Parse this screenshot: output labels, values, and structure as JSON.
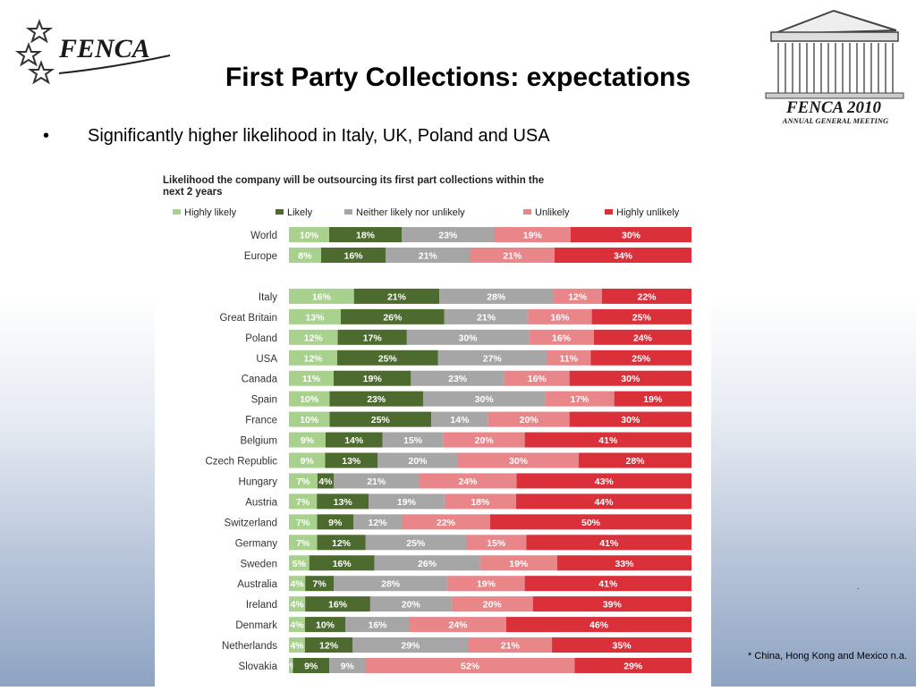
{
  "slide": {
    "title": "First Party Collections: expectations",
    "bullet_symbol": "•",
    "bullet": "Significantly higher likelihood in Italy, UK, Poland and USA",
    "footnote": "* China, Hong Kong and Mexico n.a.",
    "decor_dot": "."
  },
  "logos": {
    "left": {
      "text": "FENCA",
      "icon": "stars-swoosh-logo"
    },
    "right": {
      "title": "FENCA 2010",
      "subtitle": "ANNUAL GENERAL MEETING",
      "icon": "parthenon-logo"
    }
  },
  "chart_data": {
    "type": "bar",
    "orientation": "horizontal",
    "stacked": "100%",
    "title": "Likelihood the company will be outsourcing its first part collections within the next 2 years",
    "title_lines": [
      "Likelihood the company will be outsourcing its first part collections within the",
      "next 2 years"
    ],
    "legend_position": "top",
    "categories": [
      "World",
      "Europe",
      "Italy",
      "Great Britain",
      "Poland",
      "USA",
      "Canada",
      "Spain",
      "France",
      "Belgium",
      "Czech Republic",
      "Hungary",
      "Austria",
      "Switzerland",
      "Germany",
      "Sweden",
      "Australia",
      "Ireland",
      "Denmark",
      "Netherlands",
      "Slovakia"
    ],
    "gap_after": [
      "Europe"
    ],
    "series": [
      {
        "name": "Highly likely",
        "color": "#a9d18e",
        "values": [
          10,
          8,
          16,
          13,
          12,
          12,
          11,
          10,
          10,
          9,
          9,
          7,
          7,
          7,
          7,
          5,
          4,
          4,
          4,
          4,
          1
        ]
      },
      {
        "name": "Likely",
        "color": "#4e6b2f",
        "values": [
          18,
          16,
          21,
          26,
          17,
          25,
          19,
          23,
          25,
          14,
          13,
          4,
          13,
          9,
          12,
          16,
          7,
          16,
          10,
          12,
          9
        ]
      },
      {
        "name": "Neither likely nor unlikely",
        "color": "#a6a6a6",
        "values": [
          23,
          21,
          28,
          21,
          30,
          27,
          23,
          30,
          14,
          15,
          20,
          21,
          19,
          12,
          25,
          26,
          28,
          20,
          16,
          29,
          9
        ]
      },
      {
        "name": "Unlikely",
        "color": "#e8868a",
        "values": [
          19,
          21,
          12,
          16,
          16,
          11,
          16,
          17,
          20,
          20,
          30,
          24,
          18,
          22,
          15,
          19,
          19,
          20,
          24,
          21,
          52
        ]
      },
      {
        "name": "Highly unlikely",
        "color": "#d9303a",
        "values": [
          30,
          34,
          22,
          25,
          24,
          25,
          30,
          19,
          30,
          41,
          28,
          43,
          44,
          50,
          41,
          33,
          41,
          39,
          46,
          35,
          29
        ]
      }
    ],
    "xlim": [
      0,
      100
    ],
    "grid": false
  }
}
